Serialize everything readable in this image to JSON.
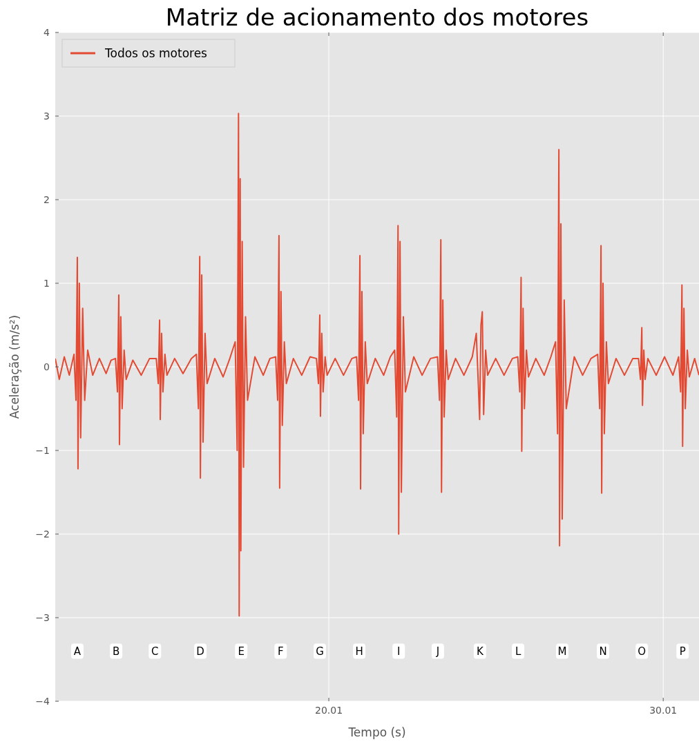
{
  "chart_data": {
    "type": "line",
    "title": "Matriz de acionamento dos motores",
    "xlabel": "Tempo (s)",
    "ylabel": "Aceleração (m/s²)",
    "xlim": [
      11.83,
      31.08
    ],
    "xticks": [
      20.01,
      30.01
    ],
    "ylim": [
      -4,
      4
    ],
    "yticks": [
      {
        "value": -4,
        "label": "−4"
      },
      {
        "value": -3,
        "label": "−3"
      },
      {
        "value": -2,
        "label": "−2"
      },
      {
        "value": -1,
        "label": "−1"
      },
      0,
      1,
      2,
      3,
      4
    ],
    "grid": true,
    "legend": "top left",
    "x": [
      11.83,
      11.95,
      12.1,
      12.25,
      12.39,
      12.45,
      12.49,
      12.51,
      12.55,
      12.59,
      12.65,
      12.71,
      12.8,
      12.95,
      13.15,
      13.35,
      13.5,
      13.63,
      13.69,
      13.73,
      13.75,
      13.79,
      13.83,
      13.89,
      13.95,
      14.15,
      14.4,
      14.65,
      14.85,
      14.91,
      14.95,
      14.97,
      15.01,
      15.05,
      15.11,
      15.17,
      15.4,
      15.65,
      15.9,
      16.05,
      16.11,
      16.15,
      16.17,
      16.21,
      16.25,
      16.31,
      16.37,
      16.6,
      16.85,
      17.05,
      17.21,
      17.27,
      17.31,
      17.33,
      17.36,
      17.38,
      17.42,
      17.46,
      17.52,
      17.58,
      17.8,
      18.05,
      18.25,
      18.42,
      18.48,
      18.52,
      18.54,
      18.58,
      18.62,
      18.68,
      18.74,
      18.95,
      19.2,
      19.45,
      19.64,
      19.7,
      19.74,
      19.76,
      19.8,
      19.84,
      19.9,
      19.96,
      20.2,
      20.45,
      20.7,
      20.84,
      20.9,
      20.94,
      20.96,
      21.0,
      21.04,
      21.1,
      21.16,
      21.4,
      21.65,
      21.85,
      21.98,
      22.04,
      22.08,
      22.1,
      22.14,
      22.18,
      22.24,
      22.3,
      22.55,
      22.8,
      23.05,
      23.26,
      23.32,
      23.36,
      23.38,
      23.42,
      23.46,
      23.52,
      23.58,
      23.8,
      24.05,
      24.3,
      24.42,
      24.48,
      24.52,
      24.56,
      24.6,
      24.64,
      24.7,
      24.76,
      25.0,
      25.25,
      25.5,
      25.66,
      25.72,
      25.76,
      25.78,
      25.82,
      25.86,
      25.92,
      25.98,
      26.2,
      26.45,
      26.65,
      26.79,
      26.85,
      26.89,
      26.91,
      26.95,
      26.99,
      27.05,
      27.11,
      27.35,
      27.6,
      27.85,
      28.05,
      28.11,
      28.15,
      28.17,
      28.21,
      28.25,
      28.31,
      28.37,
      28.6,
      28.85,
      29.1,
      29.27,
      29.33,
      29.37,
      29.39,
      29.43,
      29.47,
      29.55,
      29.8,
      30.05,
      30.3,
      30.47,
      30.53,
      30.57,
      30.59,
      30.63,
      30.67,
      30.73,
      30.79,
      30.95,
      31.08
    ],
    "series": [
      {
        "name": "Todos os motores",
        "color": "#e24a33",
        "values": [
          0.1,
          -0.15,
          0.12,
          -0.1,
          0.15,
          -0.4,
          1.31,
          -1.22,
          1.0,
          -0.85,
          0.7,
          -0.4,
          0.2,
          -0.1,
          0.1,
          -0.08,
          0.08,
          0.1,
          -0.3,
          0.86,
          -0.93,
          0.6,
          -0.5,
          0.2,
          -0.15,
          0.08,
          -0.1,
          0.1,
          0.1,
          -0.2,
          0.56,
          -0.63,
          0.4,
          -0.3,
          0.15,
          -0.1,
          0.1,
          -0.08,
          0.1,
          0.15,
          -0.5,
          1.32,
          -1.33,
          1.1,
          -0.9,
          0.4,
          -0.2,
          0.1,
          -0.12,
          0.1,
          0.3,
          -1.0,
          3.03,
          -2.98,
          2.25,
          -2.2,
          1.5,
          -1.2,
          0.6,
          -0.4,
          0.12,
          -0.1,
          0.1,
          0.12,
          -0.4,
          1.57,
          -1.45,
          0.9,
          -0.7,
          0.3,
          -0.2,
          0.1,
          -0.1,
          0.12,
          0.1,
          -0.2,
          0.62,
          -0.59,
          0.4,
          -0.3,
          0.12,
          -0.1,
          0.1,
          -0.1,
          0.1,
          0.12,
          -0.4,
          1.33,
          -1.46,
          0.9,
          -0.8,
          0.3,
          -0.2,
          0.1,
          -0.1,
          0.12,
          0.2,
          -0.6,
          1.69,
          -2.0,
          1.5,
          -1.5,
          0.6,
          -0.3,
          0.12,
          -0.1,
          0.1,
          0.12,
          -0.4,
          1.52,
          -1.5,
          0.8,
          -0.6,
          0.2,
          -0.15,
          0.1,
          -0.1,
          0.12,
          0.4,
          -0.2,
          -0.63,
          0.5,
          0.66,
          -0.57,
          0.2,
          -0.1,
          0.1,
          -0.1,
          0.1,
          0.12,
          -0.3,
          1.07,
          -1.01,
          0.7,
          -0.5,
          0.2,
          -0.12,
          0.1,
          -0.1,
          0.12,
          0.3,
          -0.8,
          2.6,
          -2.14,
          1.71,
          -1.82,
          0.8,
          -0.5,
          0.12,
          -0.1,
          0.1,
          0.15,
          -0.5,
          1.45,
          -1.51,
          1.0,
          -0.8,
          0.3,
          -0.2,
          0.1,
          -0.1,
          0.1,
          0.1,
          -0.15,
          0.47,
          -0.46,
          0.2,
          -0.15,
          0.1,
          -0.1,
          0.12,
          -0.1,
          0.12,
          -0.3,
          0.98,
          -0.95,
          0.7,
          -0.5,
          0.2,
          -0.12,
          0.1,
          -0.1
        ]
      }
    ],
    "annotations": [
      {
        "text": "A",
        "x": 12.49,
        "y": -3.4
      },
      {
        "text": "B",
        "x": 13.65,
        "y": -3.4
      },
      {
        "text": "C",
        "x": 14.81,
        "y": -3.4
      },
      {
        "text": "D",
        "x": 16.17,
        "y": -3.4
      },
      {
        "text": "E",
        "x": 17.39,
        "y": -3.4
      },
      {
        "text": "F",
        "x": 18.57,
        "y": -3.4
      },
      {
        "text": "G",
        "x": 19.74,
        "y": -3.4
      },
      {
        "text": "H",
        "x": 20.92,
        "y": -3.4
      },
      {
        "text": "I",
        "x": 22.1,
        "y": -3.4
      },
      {
        "text": "J",
        "x": 23.27,
        "y": -3.4
      },
      {
        "text": "K",
        "x": 24.53,
        "y": -3.4
      },
      {
        "text": "L",
        "x": 25.67,
        "y": -3.4
      },
      {
        "text": "M",
        "x": 26.99,
        "y": -3.4
      },
      {
        "text": "N",
        "x": 28.21,
        "y": -3.4
      },
      {
        "text": "O",
        "x": 29.37,
        "y": -3.4
      },
      {
        "text": "P",
        "x": 30.59,
        "y": -3.4
      }
    ]
  }
}
